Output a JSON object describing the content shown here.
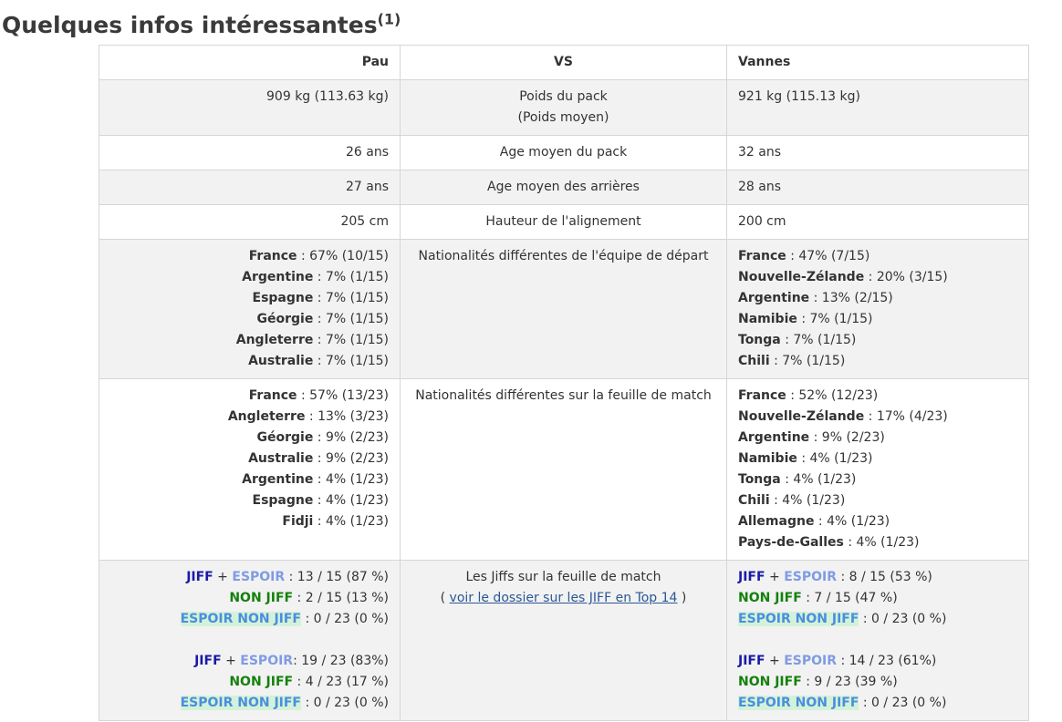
{
  "title": {
    "text": "Quelques infos intéressantes",
    "note": "(1)"
  },
  "header": {
    "left": "Pau",
    "middle": "VS",
    "right": "Vannes"
  },
  "simple_rows": [
    {
      "left": "909 kg (113.63 kg)",
      "middle": "Poids du pack",
      "middle2": "(Poids moyen)",
      "right": "921 kg (115.13 kg)"
    },
    {
      "left": "26 ans",
      "middle": "Age moyen du pack",
      "right": "32 ans"
    },
    {
      "left": "27 ans",
      "middle": "Age moyen des arrières",
      "right": "28 ans"
    },
    {
      "left": "205 cm",
      "middle": "Hauteur de l'alignement",
      "right": "200 cm"
    }
  ],
  "nationalites_depart": {
    "label": "Nationalités différentes de l'équipe de départ",
    "pau": [
      {
        "country": "France",
        "value": " : 67% (10/15)"
      },
      {
        "country": "Argentine",
        "value": " : 7% (1/15)"
      },
      {
        "country": "Espagne",
        "value": " : 7% (1/15)"
      },
      {
        "country": "Géorgie",
        "value": " : 7% (1/15)"
      },
      {
        "country": "Angleterre",
        "value": " : 7% (1/15)"
      },
      {
        "country": "Australie",
        "value": " : 7% (1/15)"
      }
    ],
    "vannes": [
      {
        "country": "France",
        "value": " : 47% (7/15)"
      },
      {
        "country": "Nouvelle-Zélande",
        "value": " : 20% (3/15)"
      },
      {
        "country": "Argentine",
        "value": " : 13% (2/15)"
      },
      {
        "country": "Namibie",
        "value": " : 7% (1/15)"
      },
      {
        "country": "Tonga",
        "value": " : 7% (1/15)"
      },
      {
        "country": "Chili",
        "value": " : 7% (1/15)"
      }
    ]
  },
  "nationalites_feuille": {
    "label": "Nationalités différentes sur la feuille de match",
    "pau": [
      {
        "country": "France",
        "value": " : 57% (13/23)"
      },
      {
        "country": "Angleterre",
        "value": " : 13% (3/23)"
      },
      {
        "country": "Géorgie",
        "value": " : 9% (2/23)"
      },
      {
        "country": "Australie",
        "value": " : 9% (2/23)"
      },
      {
        "country": "Argentine",
        "value": " : 4% (1/23)"
      },
      {
        "country": "Espagne",
        "value": " : 4% (1/23)"
      },
      {
        "country": "Fidji",
        "value": " : 4% (1/23)"
      }
    ],
    "vannes": [
      {
        "country": "France",
        "value": " : 52% (12/23)"
      },
      {
        "country": "Nouvelle-Zélande",
        "value": " : 17% (4/23)"
      },
      {
        "country": "Argentine",
        "value": " : 9% (2/23)"
      },
      {
        "country": "Namibie",
        "value": " : 4% (1/23)"
      },
      {
        "country": "Tonga",
        "value": " : 4% (1/23)"
      },
      {
        "country": "Chili",
        "value": " : 4% (1/23)"
      },
      {
        "country": "Allemagne",
        "value": " : 4% (1/23)"
      },
      {
        "country": "Pays-de-Galles",
        "value": " : 4% (1/23)"
      }
    ]
  },
  "jiff": {
    "label": "Les Jiffs sur la feuille de match",
    "link_open": "( ",
    "link_text": "voir le dossier sur les JIFF en Top 14",
    "link_close": " )",
    "terms": {
      "jiff": "JIFF",
      "plus": " + ",
      "espoir": "ESPOIR",
      "non_jiff": "NON JIFF",
      "espoir_non_jiff": "ESPOIR NON JIFF"
    },
    "pau": {
      "a1": " : 13 / 15 (87 %)",
      "a2": " : 2 / 15 (13 %)",
      "a3": " : 0 / 23 (0 %)",
      "b1": ": 19 / 23 (83%)",
      "b2": " : 4 / 23 (17 %)",
      "b3": " : 0 / 23 (0 %)"
    },
    "vannes": {
      "a1": " : 8 / 15 (53 %)",
      "a2": " : 7 / 15 (47 %)",
      "a3": " : 0 / 23 (0 %)",
      "b1": " : 14 / 23 (61%)",
      "b2": " : 9 / 23 (39 %)",
      "b3": " : 0 / 23 (0 %)"
    }
  },
  "colors": {
    "jiff": "#1a1aa6",
    "espoir": "#7f9be2",
    "non_jiff": "#15800d",
    "espoir_non_jiff_bg": "#d4f2d8"
  }
}
